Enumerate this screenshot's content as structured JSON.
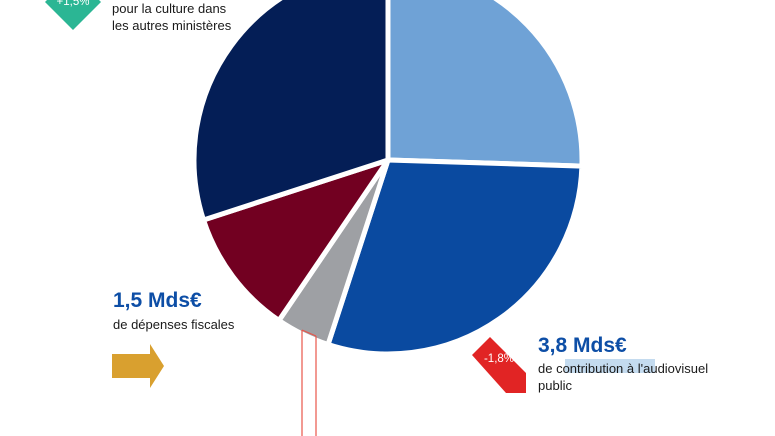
{
  "chart_data": {
    "type": "pie",
    "slices": [
      {
        "label": "",
        "value": 25.5,
        "color": "#6fa2d6"
      },
      {
        "label": "de contribution à l'audiovisuel public",
        "value": 29.5,
        "color": "#0a4aa0"
      },
      {
        "label": "",
        "value": 4.5,
        "color": "#9ea0a4"
      },
      {
        "label": "de dépenses fiscales",
        "value": 10.5,
        "color": "#720021"
      },
      {
        "label": "pour la culture dans les autres ministères",
        "value": 30.0,
        "color": "#041e56"
      }
    ]
  },
  "annotations": {
    "top_left": {
      "badge": "+1,5%",
      "badge_color": "#2bb694",
      "desc_line1": "pour la culture dans",
      "desc_line2": "les autres ministères"
    },
    "top_right": {
      "badge_color": "#2bb694"
    },
    "fiscal": {
      "amount": "1,5 Mds€",
      "amount_color": "#0d4ea6",
      "desc": "de dépenses fiscales",
      "arrow_color": "#d9a02f"
    },
    "audiovisuel": {
      "badge": "-1,8%",
      "badge_color": "#e12424",
      "amount": "3,8 Mds€",
      "amount_color": "#0d4ea6",
      "desc_line1": "de contribution à l'audiovisuel",
      "desc_line2": "public"
    }
  }
}
